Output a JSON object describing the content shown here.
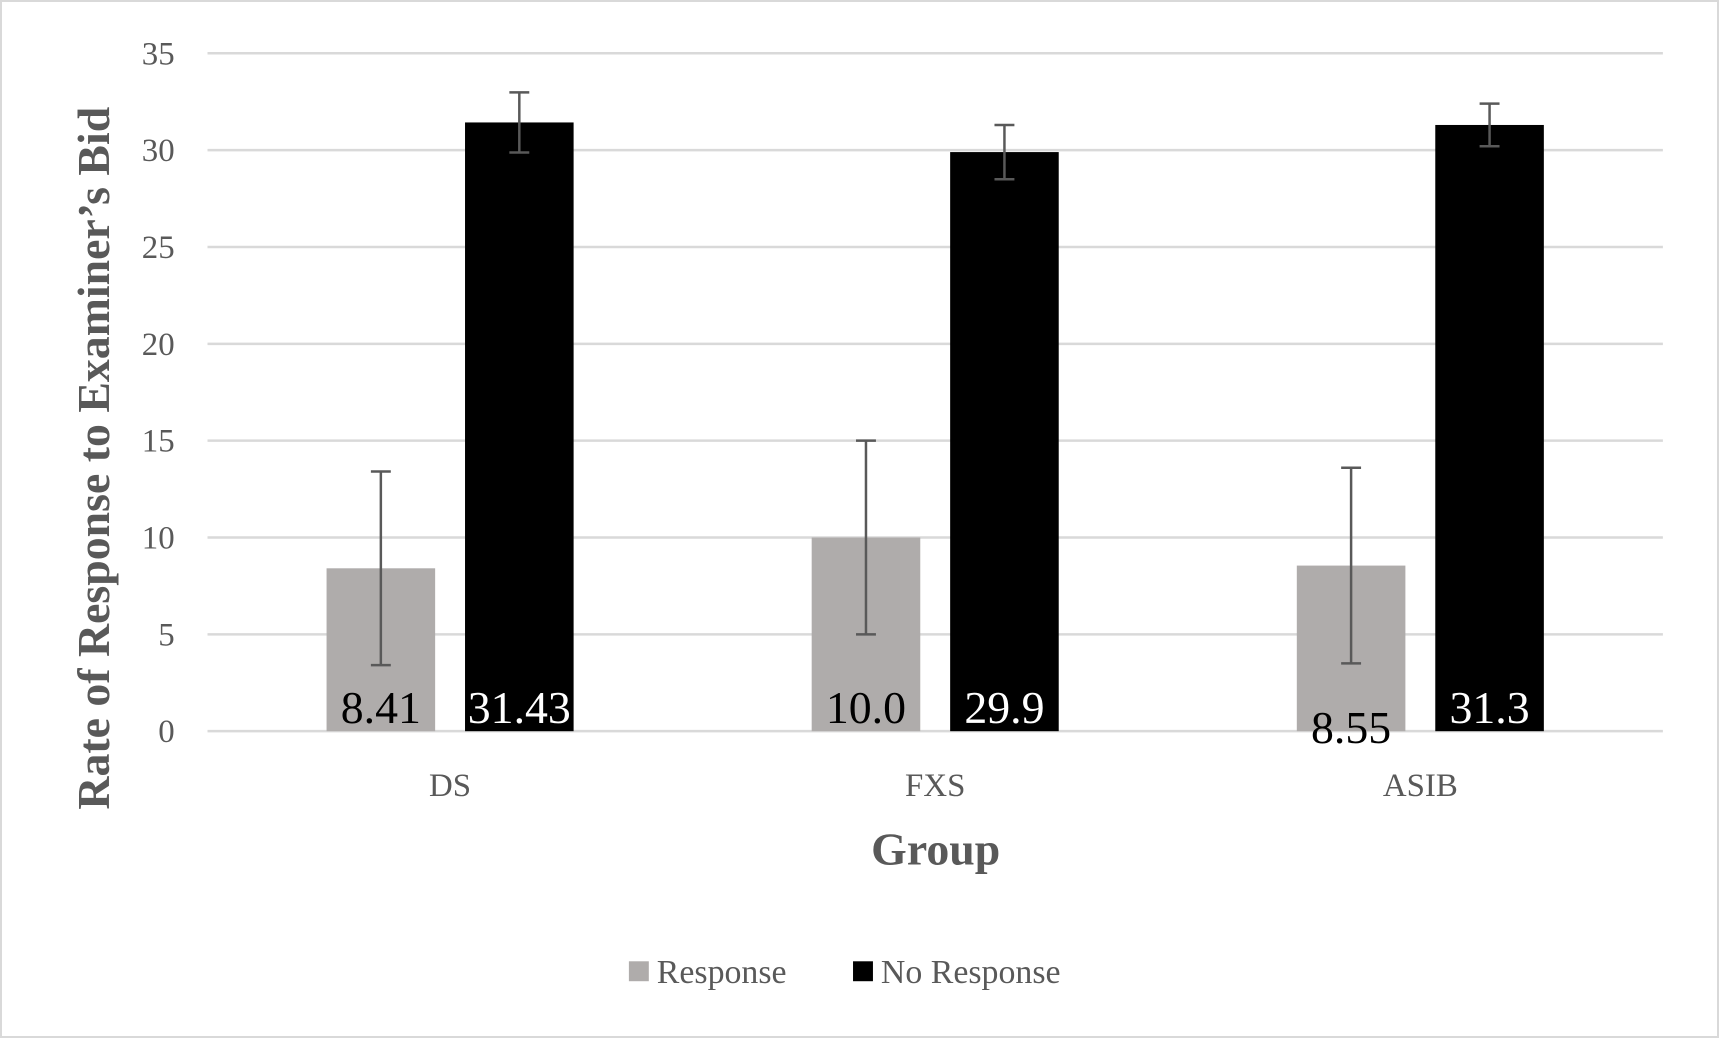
{
  "chart_data": {
    "type": "bar",
    "title": "",
    "xlabel": "Group",
    "ylabel": "Rate of Response to Examiner’s Bid",
    "categories": [
      "DS",
      "FXS",
      "ASIB"
    ],
    "ylim": [
      0,
      35
    ],
    "yticks": [
      0,
      5,
      10,
      15,
      20,
      25,
      30,
      35
    ],
    "grid": true,
    "legend_position": "bottom",
    "series": [
      {
        "name": "Response",
        "color": "#afacab",
        "label_color": "#000000",
        "values": [
          8.41,
          10.0,
          8.55
        ],
        "labels": [
          "8.41",
          "10.0",
          "8.55"
        ],
        "error": [
          5.0,
          5.0,
          5.05
        ]
      },
      {
        "name": "No Response",
        "color": "#000000",
        "label_color": "#ffffff",
        "values": [
          31.43,
          29.9,
          31.3
        ],
        "labels": [
          "31.43",
          "29.9",
          "31.3"
        ],
        "error": [
          1.55,
          1.4,
          1.1
        ]
      }
    ]
  }
}
